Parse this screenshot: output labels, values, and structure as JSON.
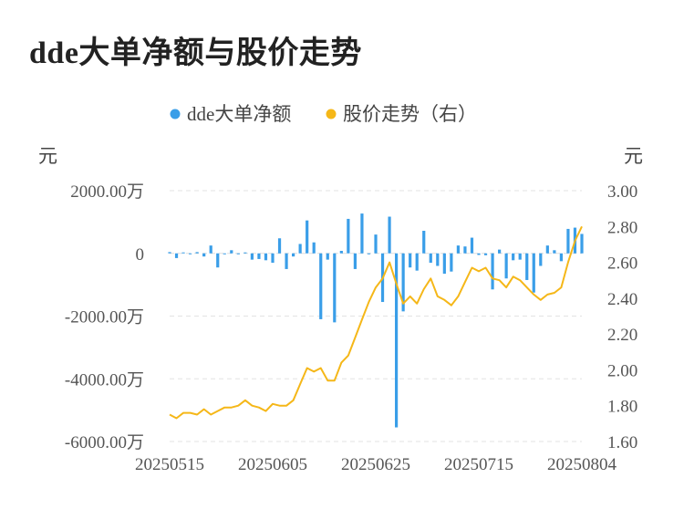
{
  "title": "dde大单净额与股价走势",
  "chart_data": {
    "type": "bar+line",
    "legend_position": "top-center",
    "grid": true,
    "legend": [
      {
        "name": "dde大单净额",
        "color": "#3a9ee8",
        "marker": "dot"
      },
      {
        "name": "股价走势（右）",
        "color": "#f5b718",
        "marker": "dot"
      }
    ],
    "left_axis": {
      "unit_label": "元",
      "range": [
        -6000,
        2000
      ],
      "ticks": [
        2000,
        0,
        -2000,
        -4000,
        -6000
      ],
      "tick_labels": [
        "2000.00万",
        "0",
        "-2000.00万",
        "-4000.00万",
        "-6000.00万"
      ]
    },
    "right_axis": {
      "unit_label": "元",
      "range": [
        1.6,
        3.0
      ],
      "ticks": [
        3.0,
        2.8,
        2.6,
        2.4,
        2.2,
        2.0,
        1.8,
        1.6
      ],
      "tick_labels": [
        "3.00",
        "2.80",
        "2.60",
        "2.40",
        "2.20",
        "2.00",
        "1.80",
        "1.60"
      ]
    },
    "x_tick_labels": [
      {
        "label": "20250515",
        "index": 0
      },
      {
        "label": "20250605",
        "index": 15
      },
      {
        "label": "20250625",
        "index": 30
      },
      {
        "label": "20250715",
        "index": 45
      },
      {
        "label": "20250804",
        "index": 60
      }
    ],
    "dde_net_wan": [
      40,
      -150,
      30,
      -20,
      40,
      -100,
      250,
      -450,
      -30,
      100,
      -20,
      30,
      -200,
      -180,
      -220,
      -300,
      480,
      -500,
      -100,
      300,
      1050,
      350,
      -2100,
      -200,
      -2200,
      80,
      1100,
      -500,
      1270,
      -20,
      600,
      -1550,
      1170,
      -5550,
      -1850,
      -450,
      -550,
      720,
      -300,
      -400,
      -650,
      -580,
      250,
      220,
      500,
      -50,
      -60,
      -1150,
      120,
      -800,
      -220,
      -200,
      -850,
      -1250,
      -400,
      250,
      100,
      -250,
      780,
      820,
      620
    ],
    "price": [
      1.75,
      1.73,
      1.76,
      1.76,
      1.75,
      1.78,
      1.75,
      1.77,
      1.79,
      1.79,
      1.8,
      1.83,
      1.8,
      1.79,
      1.77,
      1.81,
      1.8,
      1.8,
      1.83,
      1.92,
      2.01,
      1.99,
      2.01,
      1.94,
      1.94,
      2.04,
      2.08,
      2.18,
      2.28,
      2.38,
      2.46,
      2.51,
      2.6,
      2.48,
      2.37,
      2.41,
      2.37,
      2.45,
      2.51,
      2.41,
      2.39,
      2.36,
      2.41,
      2.49,
      2.57,
      2.55,
      2.57,
      2.51,
      2.5,
      2.46,
      2.52,
      2.5,
      2.46,
      2.42,
      2.39,
      2.42,
      2.43,
      2.46,
      2.6,
      2.72,
      2.8
    ]
  }
}
